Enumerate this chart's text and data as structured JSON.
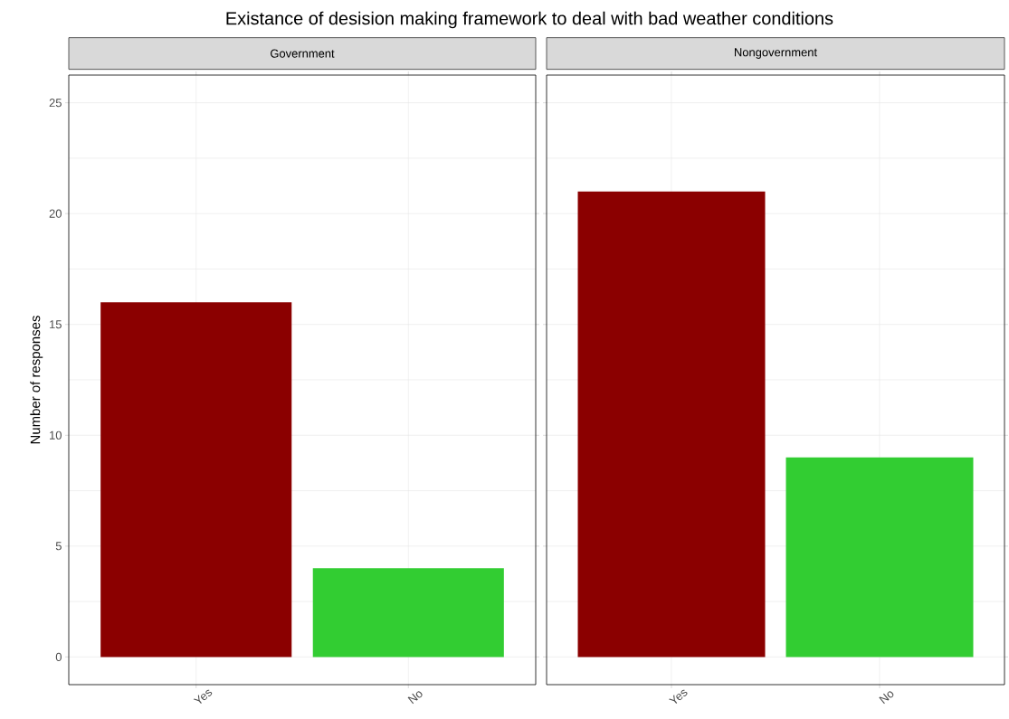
{
  "chart_data": [
    {
      "type": "bar",
      "title": "Existance of desision making framework to deal with bad weather conditions",
      "subtitle": "Government",
      "ylabel": "Number of responses",
      "categories": [
        "Yes",
        "No"
      ],
      "values": [
        16,
        4
      ],
      "colors": [
        "#8b0000",
        "#32cd32"
      ],
      "ylim": [
        -1.25,
        26.25
      ],
      "yticks": [
        0,
        5,
        10,
        15,
        20,
        25
      ],
      "grid": true
    },
    {
      "type": "bar",
      "subtitle": "Nongovernment",
      "categories": [
        "Yes",
        "No"
      ],
      "values": [
        21,
        9
      ],
      "colors": [
        "#8b0000",
        "#32cd32"
      ],
      "ylim": [
        -1.25,
        26.25
      ],
      "yticks": [
        0,
        5,
        10,
        15,
        20,
        25
      ],
      "grid": true,
      "tick_labels": "x"
    }
  ]
}
